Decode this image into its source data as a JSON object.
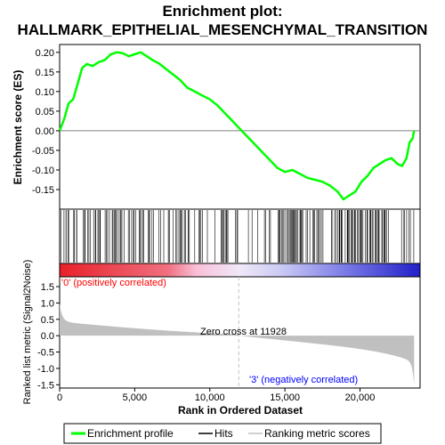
{
  "chart_data": {
    "type": "line",
    "title_line1": "Enrichment plot:",
    "title_line2": "HALLMARK_EPITHELIAL_MESENCHYMAL_TRANSITION",
    "es_ylabel": "Enrichment score (ES)",
    "metric_ylabel": "Ranked list metric (Signal2Noise)",
    "xlabel": "Rank in Ordered Dataset",
    "xlim": [
      0,
      24000
    ],
    "x_ticks": [
      "0",
      "5,000",
      "10,000",
      "15,000",
      "20,000"
    ],
    "x_tick_values": [
      0,
      5000,
      10000,
      15000,
      20000
    ],
    "es_ylim": [
      -0.2,
      0.22
    ],
    "es_ticks": [
      "0.20",
      "0.15",
      "0.10",
      "0.05",
      "0.00",
      "-0.05",
      "-0.10",
      "-0.15"
    ],
    "es_tick_values": [
      0.2,
      0.15,
      0.1,
      0.05,
      0.0,
      -0.05,
      -0.1,
      -0.15
    ],
    "metric_ylim": [
      -1.6,
      1.8
    ],
    "metric_ticks": [
      "1.5",
      "1.0",
      "0.5",
      "0.0",
      "-0.5",
      "-1.0",
      "-1.5"
    ],
    "metric_tick_values": [
      1.5,
      1.0,
      0.5,
      0.0,
      -0.5,
      -1.0,
      -1.5
    ],
    "zero_cross_label": "Zero cross at 11928",
    "zero_cross_rank": 11928,
    "pos_label": "'0' (positively correlated)",
    "neg_label": "'3' (negatively correlated)",
    "total_genes": 23600,
    "es_curve": {
      "x": [
        0,
        300,
        600,
        900,
        1200,
        1500,
        1800,
        2200,
        2600,
        3000,
        3400,
        3800,
        4200,
        4600,
        5000,
        5400,
        5800,
        6200,
        6600,
        7000,
        7500,
        8000,
        8500,
        9000,
        9500,
        10000,
        10500,
        11000,
        11500,
        12000,
        12500,
        13000,
        13500,
        14000,
        14500,
        15000,
        15500,
        16000,
        16500,
        17000,
        17500,
        18000,
        18500,
        18900,
        19300,
        19700,
        20100,
        20500,
        20900,
        21300,
        21700,
        22100,
        22500,
        22800,
        23100,
        23300,
        23500,
        23600
      ],
      "y": [
        0.0,
        0.03,
        0.07,
        0.08,
        0.12,
        0.16,
        0.17,
        0.165,
        0.175,
        0.18,
        0.195,
        0.2,
        0.198,
        0.19,
        0.195,
        0.2,
        0.19,
        0.18,
        0.172,
        0.16,
        0.145,
        0.13,
        0.11,
        0.1,
        0.09,
        0.08,
        0.065,
        0.045,
        0.025,
        0.005,
        -0.015,
        -0.035,
        -0.055,
        -0.075,
        -0.095,
        -0.105,
        -0.1,
        -0.11,
        -0.12,
        -0.125,
        -0.13,
        -0.14,
        -0.155,
        -0.175,
        -0.165,
        -0.155,
        -0.13,
        -0.115,
        -0.095,
        -0.085,
        -0.075,
        -0.07,
        -0.085,
        -0.09,
        -0.07,
        -0.03,
        -0.02,
        0.0
      ]
    },
    "legend": [
      "Enrichment profile",
      "Hits",
      "Ranking metric scores"
    ],
    "colors": {
      "es_line": "#00ff00",
      "hits": "#000000",
      "metric_fill": "#c0c0c0",
      "zero_line": "#808080",
      "pos_text": "#ff0000",
      "neg_text": "#0000ff"
    }
  }
}
